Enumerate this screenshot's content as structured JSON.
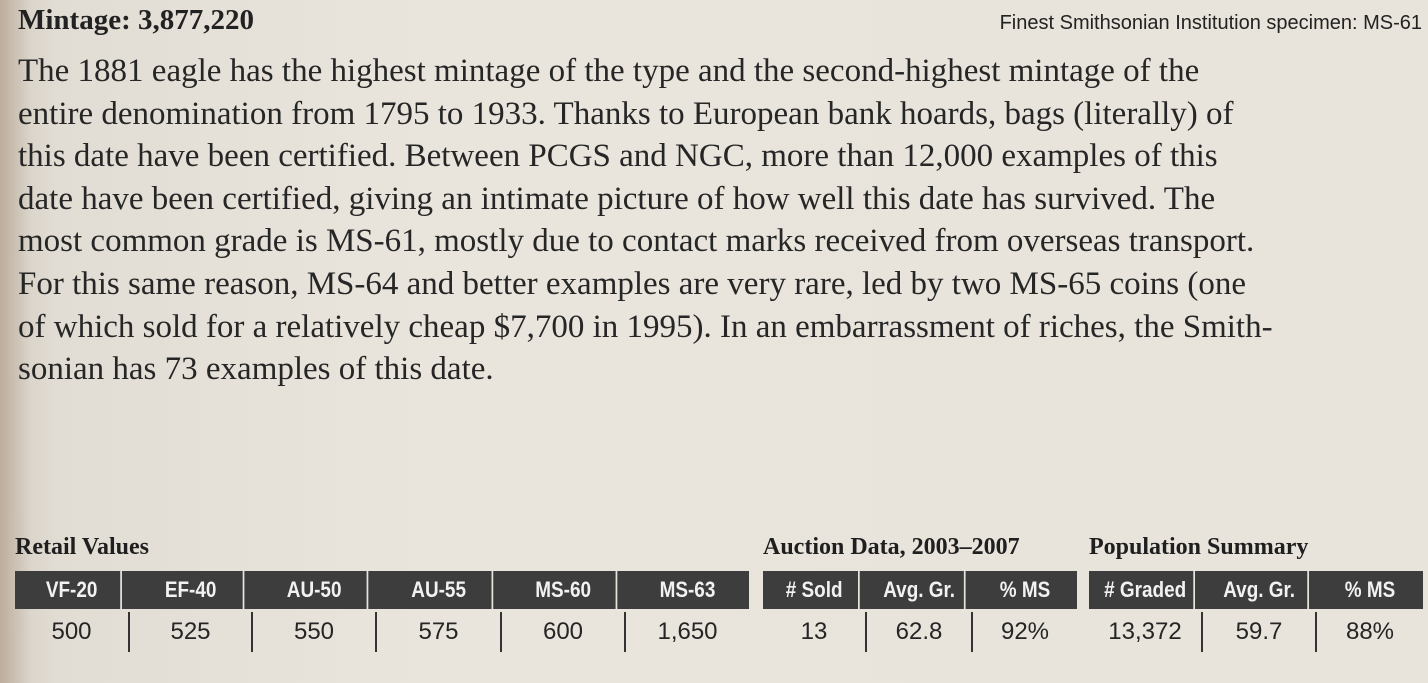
{
  "header": {
    "mintage": "Mintage: 3,877,220",
    "specimen": "Finest Smithsonian Institution specimen: MS-61"
  },
  "body_lines": [
    "The 1881 eagle has the highest mintage of the type and the second-highest mintage of the",
    "entire denomination from 1795 to 1933. Thanks to European bank hoards, bags (literally) of",
    "this date have been certified. Between PCGS and NGC, more than 12,000 examples of this",
    "date have been certified, giving an intimate picture of how well this date has survived. The",
    "most common grade is MS-61, mostly due to contact marks received from overseas transport.",
    "For this same reason, MS-64 and better examples are very rare, led by two MS-65 coins (one",
    "of which sold for a relatively cheap $7,700 in 1995). In an embarrassment of riches, the Smith-",
    "sonian has 73 examples of this date."
  ],
  "retail": {
    "title": "Retail Values",
    "headers": [
      "VF-20",
      "EF-40",
      "AU-50",
      "AU-55",
      "MS-60",
      "MS-63"
    ],
    "values": [
      "500",
      "525",
      "550",
      "575",
      "600",
      "1,650"
    ]
  },
  "auction": {
    "title": "Auction Data, 2003–2007",
    "headers": [
      "# Sold",
      "Avg. Gr.",
      "% MS"
    ],
    "values": [
      "13",
      "62.8",
      "92%"
    ]
  },
  "population": {
    "title": "Population Summary",
    "headers": [
      "# Graded",
      "Avg. Gr.",
      "% MS"
    ],
    "values": [
      "13,372",
      "59.7",
      "88%"
    ]
  }
}
